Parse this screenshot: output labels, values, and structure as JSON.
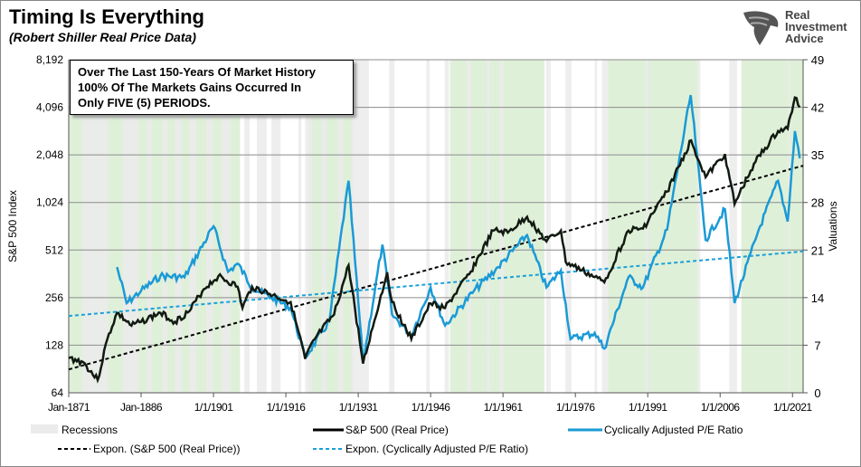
{
  "header": {
    "title": "Timing Is Everything",
    "subtitle": "(Robert Shiller Real Price Data)"
  },
  "logo": {
    "text": [
      "Real",
      "Investment",
      "Advice"
    ]
  },
  "annotation": [
    "Over The Last 150-Years Of Market History",
    "100% Of The Markets Gains Occurred In",
    "Only FIVE (5) PERIODS."
  ],
  "colors": {
    "sp500": "#111a11",
    "cape": "#1a9ad6",
    "trend_sp": "#000000",
    "trend_cape": "#1aa0d8",
    "green_period": "#dff0d8",
    "recession": "#ebebeb",
    "grid": "#8c8c8c"
  },
  "chart_data": {
    "type": "line",
    "title": "Timing Is Everything",
    "subtitle": "(Robert Shiller Real Price Data)",
    "xlabel": "",
    "ylabel_left": "S&P 500 Index",
    "ylabel_right": "Valuations",
    "y_left_scale": "log2",
    "y_left_range": [
      64,
      8192
    ],
    "y_right_range": [
      0,
      49
    ],
    "x_range": [
      1871,
      2023.2
    ],
    "x_tick_labels": [
      "Jan-1871",
      "Jan-1886",
      "1/1/1901",
      "1/1/1916",
      "1/1/1931",
      "1/1/1946",
      "1/1/1961",
      "1/1/1976",
      "1/1/1991",
      "1/1/2006",
      "1/1/2021"
    ],
    "x_tick_years": [
      1871,
      1886,
      1901,
      1916,
      1931,
      1946,
      1961,
      1976,
      1991,
      2006,
      2021
    ],
    "y_left_ticks": [
      "64",
      "128",
      "256",
      "512",
      "1,024",
      "2,048",
      "4,096",
      "8,192"
    ],
    "y_left_tick_values": [
      64,
      128,
      256,
      512,
      1024,
      2048,
      4096,
      8192
    ],
    "y_right_ticks": [
      "0",
      "7",
      "14",
      "21",
      "28",
      "35",
      "42",
      "49"
    ],
    "y_right_tick_values": [
      0,
      7,
      14,
      21,
      28,
      35,
      42,
      49
    ],
    "grid": "horizontal",
    "legend_position": "bottom",
    "green_periods": [
      [
        1871,
        1906.5
      ],
      [
        1920.7,
        1930
      ],
      [
        1950,
        1969.6
      ],
      [
        1982.7,
        2001.5
      ],
      [
        2010.4,
        2023.2
      ]
    ],
    "recessions": [
      [
        1873.8,
        1879.2
      ],
      [
        1882.2,
        1885.4
      ],
      [
        1887.2,
        1888.3
      ],
      [
        1890.5,
        1891.4
      ],
      [
        1893.0,
        1894.5
      ],
      [
        1895.9,
        1897.5
      ],
      [
        1899.5,
        1900.9
      ],
      [
        1902.7,
        1904.6
      ],
      [
        1907.4,
        1908.5
      ],
      [
        1910.0,
        1912.0
      ],
      [
        1913.0,
        1914.9
      ],
      [
        1918.6,
        1919.2
      ],
      [
        1920.0,
        1921.5
      ],
      [
        1923.4,
        1924.5
      ],
      [
        1926.8,
        1927.9
      ],
      [
        1929.6,
        1933.2
      ],
      [
        1937.4,
        1938.5
      ],
      [
        1945.1,
        1945.8
      ],
      [
        1948.9,
        1949.8
      ],
      [
        1953.5,
        1954.4
      ],
      [
        1957.6,
        1958.3
      ],
      [
        1960.3,
        1961.1
      ],
      [
        1969.9,
        1970.9
      ],
      [
        1973.9,
        1975.2
      ],
      [
        1980.0,
        1980.5
      ],
      [
        1981.5,
        1982.9
      ],
      [
        1990.5,
        1991.2
      ],
      [
        2001.2,
        2001.9
      ],
      [
        2007.9,
        2009.5
      ],
      [
        2020.1,
        2020.3
      ]
    ],
    "series": [
      {
        "name": "S&P 500 (Real Price)",
        "axis": "left",
        "x": [
          1871,
          1874,
          1877,
          1879,
          1881,
          1884,
          1886,
          1890,
          1893,
          1896,
          1899,
          1902,
          1906,
          1907,
          1909,
          1914,
          1917,
          1920,
          1922,
          1926,
          1929,
          1932,
          1937,
          1938,
          1942,
          1946,
          1949,
          1954,
          1959,
          1962,
          1966,
          1970,
          1973,
          1974,
          1980,
          1982,
          1987,
          1990,
          1995,
          2000,
          2003,
          2007,
          2009,
          2013,
          2018,
          2020,
          2021.5,
          2022.5
        ],
        "values": [
          106,
          100,
          77,
          140,
          205,
          170,
          180,
          205,
          180,
          210,
          290,
          350,
          300,
          220,
          300,
          260,
          240,
          105,
          140,
          200,
          410,
          98,
          370,
          240,
          140,
          235,
          220,
          360,
          680,
          660,
          830,
          580,
          680,
          430,
          345,
          320,
          680,
          700,
          1200,
          2530,
          1480,
          2070,
          1000,
          1800,
          2900,
          3000,
          4720,
          4100
        ]
      },
      {
        "name": "Cyclically Adjusted P/E Ratio",
        "axis": "right",
        "x": [
          1881,
          1883,
          1886,
          1890,
          1895,
          1901,
          1904,
          1906,
          1909,
          1913,
          1917,
          1920,
          1925,
          1929,
          1932,
          1936,
          1938,
          1942,
          1946,
          1949,
          1955,
          1960,
          1966,
          1970,
          1973,
          1975,
          1980,
          1982,
          1987,
          1990,
          1995,
          1999.9,
          2003,
          2007,
          2009,
          2014,
          2018,
          2020,
          2021.5,
          2022.5
        ],
        "values": [
          18.5,
          13.2,
          15,
          17.2,
          17,
          24.5,
          17.8,
          19,
          15.5,
          14,
          12.5,
          5.2,
          10.5,
          31.2,
          4.5,
          21.8,
          11.5,
          8.5,
          15.5,
          9.9,
          15,
          18.5,
          23.2,
          15.5,
          18,
          7.9,
          8.8,
          6.5,
          17,
          15.5,
          24,
          43.8,
          22.5,
          27,
          13.2,
          24,
          31.2,
          25.2,
          38.5,
          34.5
        ]
      },
      {
        "name": "Expon. (S&P 500 (Real Price))",
        "axis": "left",
        "x": [
          1871,
          2023.2
        ],
        "values": [
          90,
          1750
        ]
      },
      {
        "name": "Expon. (Cyclically Adjusted P/E Ratio)",
        "axis": "right",
        "x": [
          1871,
          2023.2
        ],
        "values": [
          11.3,
          20.8
        ]
      }
    ],
    "legend": [
      "Recessions",
      "S&P 500 (Real Price)",
      "Cyclically Adjusted P/E Ratio",
      "Expon. (S&P 500 (Real Price))",
      "Expon. (Cyclically Adjusted P/E Ratio)"
    ]
  }
}
